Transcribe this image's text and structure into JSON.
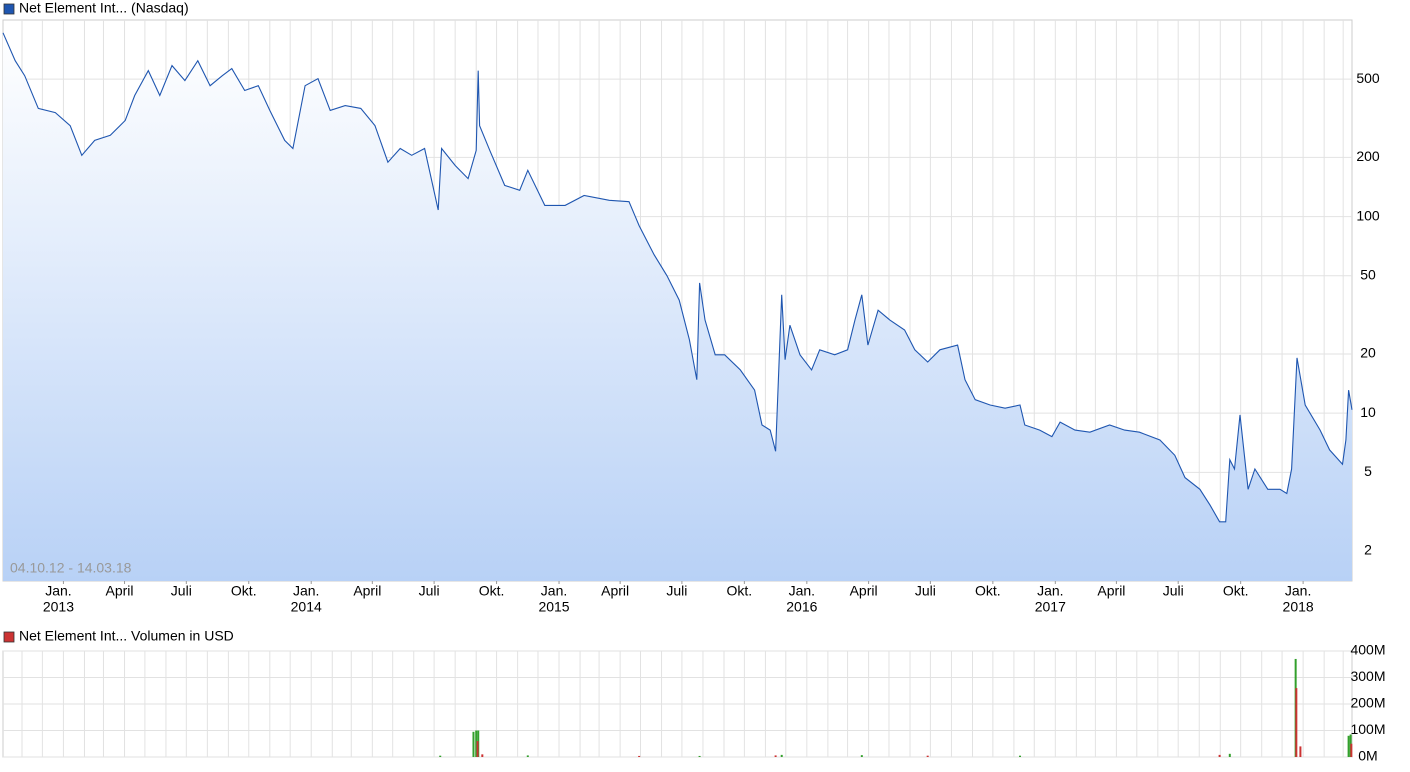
{
  "chart_data": [
    {
      "type": "area",
      "title": "Net Element Int... (Nasdaq)",
      "annotation": "04.10.12 - 14.03.18",
      "log_scale": true,
      "grid": true,
      "xlim": [
        "2012-10-04",
        "2018-03-14"
      ],
      "ylim": [
        1.4,
        1000
      ],
      "yticks": [
        2,
        5,
        10,
        20,
        50,
        100,
        200,
        500
      ],
      "xticks": [
        {
          "value": "2013-01-01",
          "label": "Jan."
        },
        {
          "value": "2013-04-01",
          "label": "April"
        },
        {
          "value": "2013-07-01",
          "label": "Juli"
        },
        {
          "value": "2013-10-01",
          "label": "Okt."
        },
        {
          "value": "2014-01-01",
          "label": "Jan."
        },
        {
          "value": "2014-04-01",
          "label": "April"
        },
        {
          "value": "2014-07-01",
          "label": "Juli"
        },
        {
          "value": "2014-10-01",
          "label": "Okt."
        },
        {
          "value": "2015-01-01",
          "label": "Jan."
        },
        {
          "value": "2015-04-01",
          "label": "April"
        },
        {
          "value": "2015-07-01",
          "label": "Juli"
        },
        {
          "value": "2015-10-01",
          "label": "Okt."
        },
        {
          "value": "2016-01-01",
          "label": "Jan."
        },
        {
          "value": "2016-04-01",
          "label": "April"
        },
        {
          "value": "2016-07-01",
          "label": "Juli"
        },
        {
          "value": "2016-10-01",
          "label": "Okt."
        },
        {
          "value": "2017-01-01",
          "label": "Jan."
        },
        {
          "value": "2017-04-01",
          "label": "April"
        },
        {
          "value": "2017-07-01",
          "label": "Juli"
        },
        {
          "value": "2017-10-01",
          "label": "Okt."
        },
        {
          "value": "2018-01-01",
          "label": "Jan."
        }
      ],
      "year_ticks": [
        {
          "value": "2013-01-01",
          "label": "2013"
        },
        {
          "value": "2014-01-01",
          "label": "2014"
        },
        {
          "value": "2015-01-01",
          "label": "2015"
        },
        {
          "value": "2016-01-01",
          "label": "2016"
        },
        {
          "value": "2017-01-01",
          "label": "2017"
        },
        {
          "value": "2018-01-01",
          "label": "2018"
        }
      ],
      "series": [
        {
          "color": "#1f56b0",
          "x": [
            "2012-10-04",
            "2012-10-22",
            "2012-11-05",
            "2012-11-25",
            "2012-12-20",
            "2013-01-11",
            "2013-01-28",
            "2013-02-16",
            "2013-03-11",
            "2013-04-02",
            "2013-04-16",
            "2013-05-06",
            "2013-05-23",
            "2013-06-10",
            "2013-06-29",
            "2013-07-18",
            "2013-08-05",
            "2013-08-23",
            "2013-09-06",
            "2013-09-25",
            "2013-10-15",
            "2013-11-01",
            "2013-11-23",
            "2013-12-05",
            "2013-12-23",
            "2014-01-11",
            "2014-01-29",
            "2014-02-20",
            "2014-03-15",
            "2014-04-05",
            "2014-04-24",
            "2014-05-12",
            "2014-05-29",
            "2014-06-17",
            "2014-07-07",
            "2014-07-12",
            "2014-08-01",
            "2014-08-20",
            "2014-09-01",
            "2014-09-04",
            "2014-09-06",
            "2014-09-21",
            "2014-10-13",
            "2014-11-04",
            "2014-11-16",
            "2014-12-11",
            "2015-01-10",
            "2015-02-07",
            "2015-03-16",
            "2015-04-14",
            "2015-04-29",
            "2015-05-21",
            "2015-06-09",
            "2015-06-27",
            "2015-07-12",
            "2015-07-23",
            "2015-07-27",
            "2015-08-04",
            "2015-08-19",
            "2015-09-02",
            "2015-09-25",
            "2015-10-16",
            "2015-10-27",
            "2015-11-08",
            "2015-11-16",
            "2015-11-25",
            "2015-11-30",
            "2015-12-07",
            "2015-12-22",
            "2016-01-08",
            "2016-01-20",
            "2016-02-11",
            "2016-03-01",
            "2016-03-12",
            "2016-03-22",
            "2016-03-31",
            "2016-04-15",
            "2016-05-02",
            "2016-05-24",
            "2016-06-08",
            "2016-06-27",
            "2016-07-15",
            "2016-08-10",
            "2016-08-21",
            "2016-09-05",
            "2016-09-27",
            "2016-10-19",
            "2016-11-10",
            "2016-11-17",
            "2016-12-09",
            "2016-12-27",
            "2017-01-08",
            "2017-01-30",
            "2017-02-21",
            "2017-03-22",
            "2017-04-13",
            "2017-05-05",
            "2017-06-04",
            "2017-06-26",
            "2017-07-11",
            "2017-08-02",
            "2017-08-17",
            "2017-08-31",
            "2017-09-09",
            "2017-09-15",
            "2017-09-22",
            "2017-09-30",
            "2017-10-12",
            "2017-10-22",
            "2017-11-10",
            "2017-11-28",
            "2017-12-08",
            "2017-12-15",
            "2017-12-23",
            "2018-01-04",
            "2018-01-26",
            "2018-02-09",
            "2018-02-28",
            "2018-03-05",
            "2018-03-09",
            "2018-03-14"
          ],
          "values": [
            861,
            621,
            521,
            355,
            338,
            290,
            205,
            244,
            259,
            308,
            413,
            553,
            413,
            586,
            492,
            621,
            463,
            521,
            566,
            438,
            463,
            347,
            244,
            222,
            463,
            503,
            347,
            367,
            355,
            290,
            189,
            222,
            205,
            222,
            108,
            222,
            182,
            156,
            217,
            553,
            290,
            217,
            144,
            136,
            172,
            114,
            114,
            128,
            121,
            119,
            90,
            64,
            50,
            37.6,
            23.6,
            14.8,
            46,
            29.8,
            19.8,
            19.8,
            16.6,
            13.1,
            8.7,
            8.2,
            6.4,
            40,
            18.7,
            28,
            19.8,
            16.6,
            21,
            19.8,
            21,
            29.8,
            40,
            22.2,
            33.4,
            29.8,
            26.5,
            21,
            18.2,
            21,
            22.2,
            14.8,
            11.7,
            11,
            10.6,
            11,
            8.7,
            8.2,
            7.6,
            9,
            8.2,
            8,
            8.7,
            8.2,
            8,
            7.3,
            6.1,
            4.7,
            4.1,
            3.4,
            2.8,
            2.8,
            5.8,
            5.2,
            9.8,
            4.1,
            5.2,
            4.1,
            4.1,
            3.9,
            5.2,
            19.1,
            11,
            8.2,
            6.5,
            5.5,
            7.3,
            13.1,
            10.4
          ]
        }
      ]
    },
    {
      "type": "bar",
      "title": "Net Element Int... Volumen in USD",
      "grid": true,
      "xlim": [
        "2012-10-04",
        "2018-03-14"
      ],
      "ylim": [
        0,
        400000000
      ],
      "yticks": [
        {
          "value": 0,
          "label": "0M"
        },
        {
          "value": 100000000,
          "label": "100M"
        },
        {
          "value": 200000000,
          "label": "200M"
        },
        {
          "value": 300000000,
          "label": "300M"
        },
        {
          "value": 400000000,
          "label": "400M"
        }
      ],
      "series": [
        {
          "color": "#33a02c",
          "x": [
            "2014-07-10",
            "2014-08-28",
            "2014-09-01",
            "2014-09-04",
            "2014-11-16",
            "2015-07-27",
            "2015-11-25",
            "2016-03-22",
            "2016-11-10",
            "2017-09-15",
            "2017-12-21",
            "2018-03-09",
            "2018-03-12"
          ],
          "values": [
            5000000,
            95000000,
            100000000,
            100000000,
            6000000,
            4000000,
            8000000,
            7000000,
            5000000,
            12000000,
            370000000,
            80000000,
            85000000
          ]
        },
        {
          "color": "#cc3333",
          "x": [
            "2014-09-03",
            "2014-09-10",
            "2015-04-29",
            "2015-11-16",
            "2016-06-27",
            "2017-08-31",
            "2017-12-22",
            "2017-12-28",
            "2018-03-13"
          ],
          "values": [
            60000000,
            10000000,
            4000000,
            6000000,
            5000000,
            8000000,
            260000000,
            40000000,
            50000000
          ]
        }
      ]
    }
  ]
}
